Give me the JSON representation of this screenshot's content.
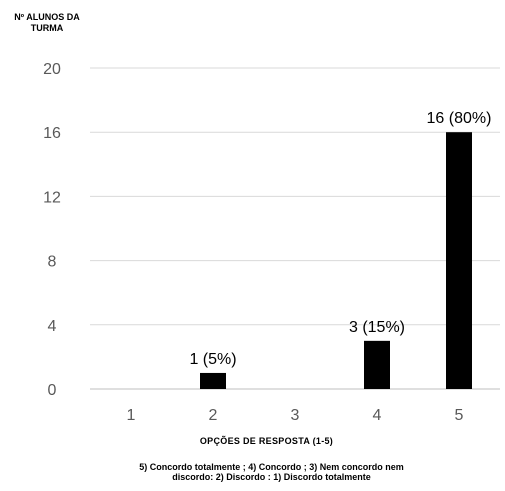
{
  "chart_data": {
    "type": "bar",
    "ylabel_lines": [
      "Nº ALUNOS DA",
      "TURMA"
    ],
    "xlabel": "OPÇÕES DE RESPOSTA (1-5)",
    "legend_lines": [
      "5) Concordo totalmente ;  4) Concordo ;  3) Nem concordo nem",
      "discordo:   2) Discordo  : 1) Discordo totalmente"
    ],
    "categories": [
      "1",
      "2",
      "3",
      "4",
      "5"
    ],
    "values": [
      0,
      1,
      0,
      3,
      16
    ],
    "data_labels": [
      "",
      "1 (5%)",
      "",
      "3 (15%)",
      "16 (80%)"
    ],
    "ylim": [
      0,
      20
    ],
    "yticks": [
      "0",
      "4",
      "8",
      "12",
      "16",
      "20"
    ],
    "grid": true,
    "bar_color": "#000000",
    "grid_color": "#d9d9d9"
  }
}
